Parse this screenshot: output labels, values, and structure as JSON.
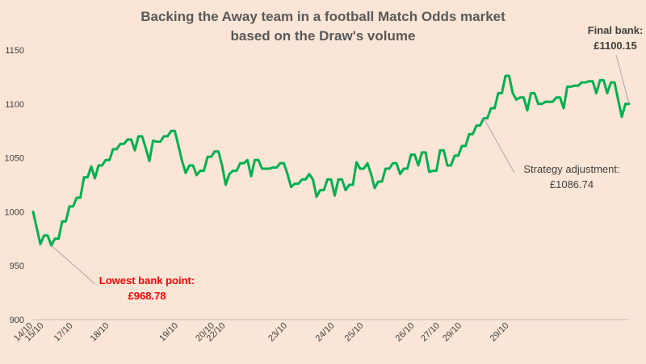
{
  "chart_data": {
    "type": "line",
    "title": [
      "Backing the Away team in a football Match Odds market",
      "based on the Draw's volume"
    ],
    "xlabel": "",
    "ylabel": "",
    "ylim": [
      900,
      1150
    ],
    "yticks": [
      900,
      950,
      1000,
      1050,
      1100,
      1150
    ],
    "grid": false,
    "legend": "none",
    "line_color": "#00b050",
    "x_date_labels": [
      {
        "i": 0,
        "label": "14/10"
      },
      {
        "i": 3,
        "label": "15/10"
      },
      {
        "i": 11,
        "label": "17/10"
      },
      {
        "i": 21,
        "label": "18/10"
      },
      {
        "i": 40,
        "label": "19/10"
      },
      {
        "i": 50,
        "label": "20/10"
      },
      {
        "i": 53,
        "label": "22/10"
      },
      {
        "i": 70,
        "label": "23/10"
      },
      {
        "i": 83,
        "label": "24/10"
      },
      {
        "i": 91,
        "label": "25/10"
      },
      {
        "i": 105,
        "label": "26/10"
      },
      {
        "i": 112,
        "label": "27/10"
      },
      {
        "i": 118,
        "label": "29/10"
      },
      {
        "i": 131,
        "label": "29/10"
      }
    ],
    "series": [
      {
        "values": [
          1000,
          985,
          970,
          978,
          978,
          968.78,
          975,
          975,
          991,
          991,
          1005,
          1005,
          1013,
          1013,
          1032,
          1032,
          1042,
          1031,
          1043,
          1043,
          1048,
          1048,
          1058,
          1058,
          1063,
          1063,
          1067,
          1067,
          1057,
          1070,
          1070,
          1059,
          1047,
          1066,
          1065,
          1065,
          1070,
          1070,
          1075,
          1075,
          1061,
          1047,
          1036,
          1043,
          1043,
          1034,
          1038,
          1038,
          1051,
          1051,
          1056,
          1056,
          1043,
          1025,
          1035,
          1038,
          1038,
          1045,
          1045,
          1048,
          1033,
          1048,
          1048,
          1040,
          1040,
          1040,
          1041,
          1041,
          1045,
          1045,
          1035,
          1023,
          1026,
          1026,
          1030,
          1030,
          1035,
          1030,
          1014,
          1020,
          1020,
          1030,
          1030,
          1015,
          1030,
          1030,
          1020,
          1025,
          1025,
          1046,
          1040,
          1040,
          1045,
          1035,
          1022,
          1028,
          1028,
          1040,
          1040,
          1045,
          1045,
          1035,
          1040,
          1040,
          1053,
          1053,
          1043,
          1055,
          1055,
          1037,
          1038,
          1038,
          1057,
          1057,
          1043,
          1043,
          1052,
          1052,
          1061,
          1061,
          1072,
          1072,
          1080,
          1080,
          1086.74,
          1086.74,
          1096,
          1096,
          1110,
          1110,
          1126,
          1126,
          1110,
          1104,
          1106,
          1106,
          1094,
          1110,
          1110,
          1100,
          1100,
          1102,
          1102,
          1102,
          1106,
          1106,
          1096,
          1116,
          1116,
          1117,
          1117,
          1120,
          1120,
          1121,
          1121,
          1110,
          1122,
          1122,
          1110,
          1120,
          1120,
          1104,
          1088,
          1100,
          1100.15
        ]
      }
    ],
    "annotations": [
      {
        "label": "Lowest bank point:",
        "value": "£968.78",
        "color": "#ff0000",
        "bold": true
      },
      {
        "label": "Strategy adjustment:",
        "value": "£1086.74",
        "color": "#404040",
        "bold": false
      },
      {
        "label": "Final bank:",
        "value": "£1100.15",
        "color": "#404040",
        "bold": true
      }
    ]
  }
}
